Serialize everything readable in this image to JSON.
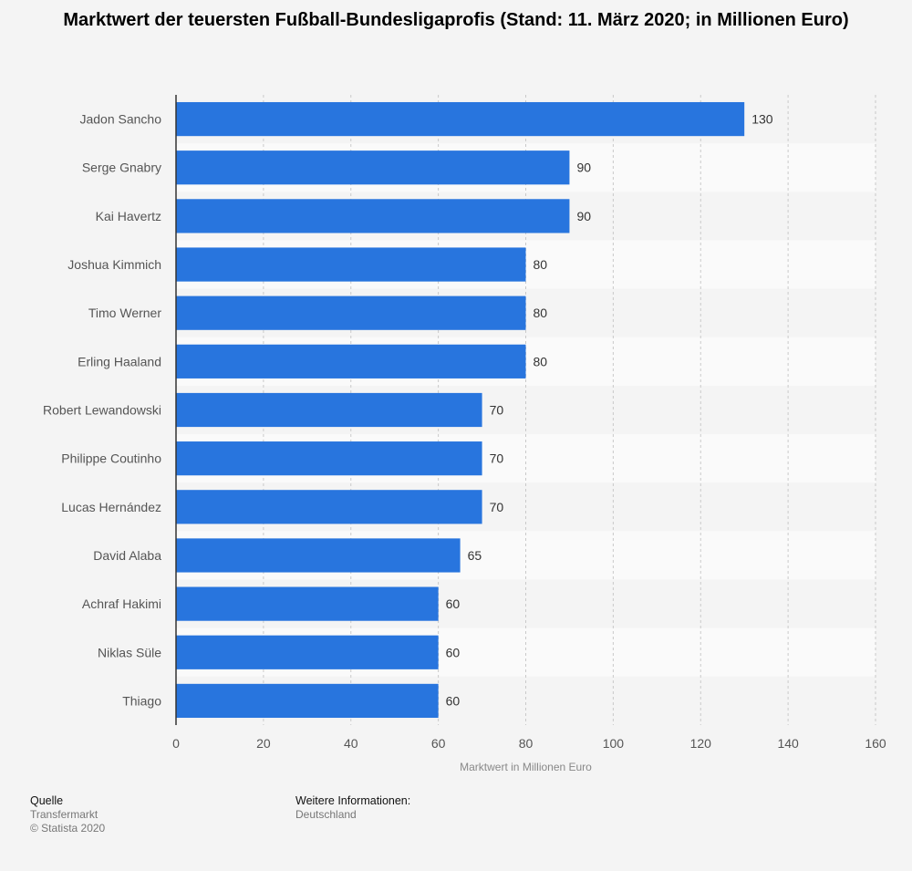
{
  "chart_data": {
    "type": "bar",
    "orientation": "horizontal",
    "title": "Marktwert der teuersten Fußball-Bundesligaprofis (Stand: 11. März 2020; in Millionen Euro)",
    "xlabel": "Marktwert in Millionen Euro",
    "ylabel": "",
    "xlim": [
      0,
      160
    ],
    "ticks": [
      "0",
      "20",
      "40",
      "60",
      "80",
      "100",
      "120",
      "140",
      "160"
    ],
    "categories": [
      "Jadon Sancho",
      "Serge Gnabry",
      "Kai Havertz",
      "Joshua Kimmich",
      "Timo Werner",
      "Erling Haaland",
      "Robert Lewandowski",
      "Philippe Coutinho",
      "Lucas Hernández",
      "David Alaba",
      "Achraf Hakimi",
      "Niklas Süle",
      "Thiago"
    ],
    "values": [
      130,
      90,
      90,
      80,
      80,
      80,
      70,
      70,
      70,
      65,
      60,
      60,
      60
    ],
    "bar_color": "#2875de",
    "grid": true,
    "data_labels": true
  },
  "footer": {
    "source_label": "Quelle",
    "source_name": "Transfermarkt",
    "copyright": "© Statista 2020",
    "info_label": "Weitere Informationen:",
    "info_value": "Deutschland"
  }
}
